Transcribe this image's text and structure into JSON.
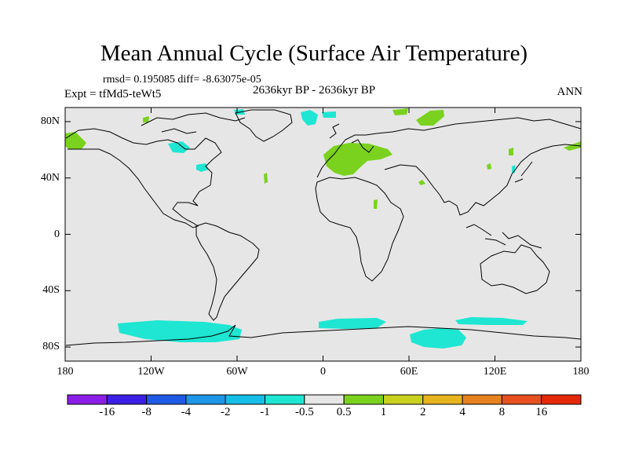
{
  "figure": {
    "title": "Mean Annual Cycle (Surface Air Temperature)",
    "stats": "rmsd= 0.195085 diff= -8.63075e-05",
    "experiment": "Expt = tfMd5-teWt5",
    "period": "2636kyr BP - 2636kyr BP",
    "season": "ANN"
  },
  "axes": {
    "lat_labels": [
      "80N",
      "40N",
      "0",
      "40S",
      "80S"
    ],
    "lat_values": [
      80,
      40,
      0,
      -40,
      -80
    ],
    "lon_labels": [
      "180",
      "120W",
      "60W",
      "0",
      "60E",
      "120E",
      "180"
    ],
    "lon_values": [
      -180,
      -120,
      -60,
      0,
      60,
      120,
      180
    ],
    "lat_range": [
      -90,
      90
    ],
    "lon_range": [
      -180,
      180
    ]
  },
  "colorbar": {
    "labels": [
      "-16",
      "-8",
      "-4",
      "-2",
      "-1",
      "-0.5",
      "0.5",
      "1",
      "2",
      "4",
      "8",
      "16"
    ],
    "colors": [
      "#8a1ee6",
      "#3c1ee6",
      "#1e5ae6",
      "#1e96e6",
      "#14bee6",
      "#1ee6d2",
      "#e6e6e6",
      "#7ad21e",
      "#c8d21e",
      "#e6b41e",
      "#e6821e",
      "#e6501e",
      "#e6280a"
    ]
  },
  "chart_data": {
    "type": "heatmap",
    "title": "Mean Annual Cycle (Surface Air Temperature)",
    "variable": "Surface Air Temperature difference",
    "background_class": "-0.5 to 0.5",
    "anomaly_regions": [
      {
        "name": "Europe / western Siberia",
        "class": "0.5 to 1"
      },
      {
        "name": "Arctic north of Eurasia",
        "class": "0.5 to 1"
      },
      {
        "name": "Alaska",
        "class": "0.5 to 1"
      },
      {
        "name": "Greenland Sea",
        "class": "-1 to -0.5"
      },
      {
        "name": "Hudson Bay region",
        "class": "-1 to -0.5"
      },
      {
        "name": "Great Lakes",
        "class": "-1 to -0.5"
      },
      {
        "name": "Southern Ocean Pacific sector",
        "class": "-1 to -0.5"
      },
      {
        "name": "Southern Ocean Indian sector",
        "class": "-1 to -0.5"
      },
      {
        "name": "East Antarctica coast",
        "class": "-1 to -0.5"
      }
    ]
  }
}
